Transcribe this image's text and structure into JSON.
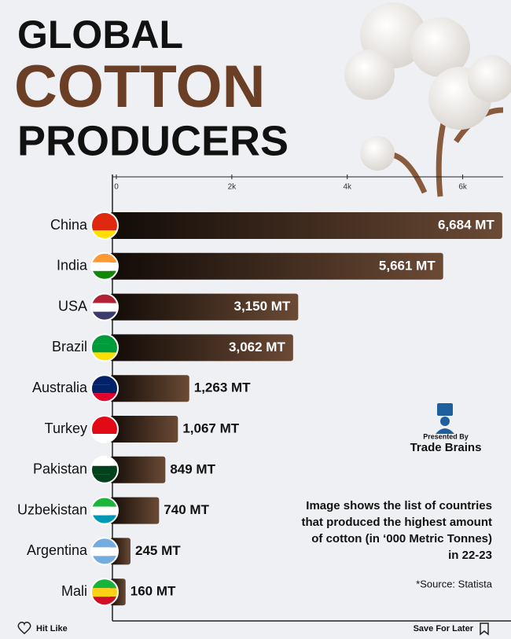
{
  "chart_data": {
    "type": "bar",
    "orientation": "horizontal",
    "title_lines": [
      "GLOBAL",
      "COTTON",
      "PRODUCERS"
    ],
    "categories": [
      "China",
      "India",
      "USA",
      "Brazil",
      "Australia",
      "Turkey",
      "Pakistan",
      "Uzbekistan",
      "Argentina",
      "Mali"
    ],
    "values": [
      6684,
      5661,
      3150,
      3062,
      1263,
      1067,
      849,
      740,
      245,
      160
    ],
    "value_labels": [
      "6,684 MT",
      "5,661 MT",
      "3,150 MT",
      "3,062 MT",
      "1,263 MT",
      "1,067 MT",
      "849 MT",
      "740 MT",
      "245 MT",
      "160 MT"
    ],
    "color": "#6b4a35",
    "xlim": [
      0,
      6700
    ],
    "xticks": [
      0,
      {
        "value": 2000,
        "label": "2k"
      },
      {
        "value": 4000,
        "label": "4k"
      },
      {
        "value": 6000,
        "label": "6k"
      }
    ],
    "presenter": [
      "Presented By",
      "Trade Brains"
    ],
    "note_lines": [
      "Image shows the list of countries",
      "that produced the highest amount",
      "of cotton (in ‘000 Metric Tonnes)",
      "in 22-23"
    ],
    "source": "*Source: Statista",
    "footer": [
      "Hit Like",
      "Save For Later"
    ]
  }
}
